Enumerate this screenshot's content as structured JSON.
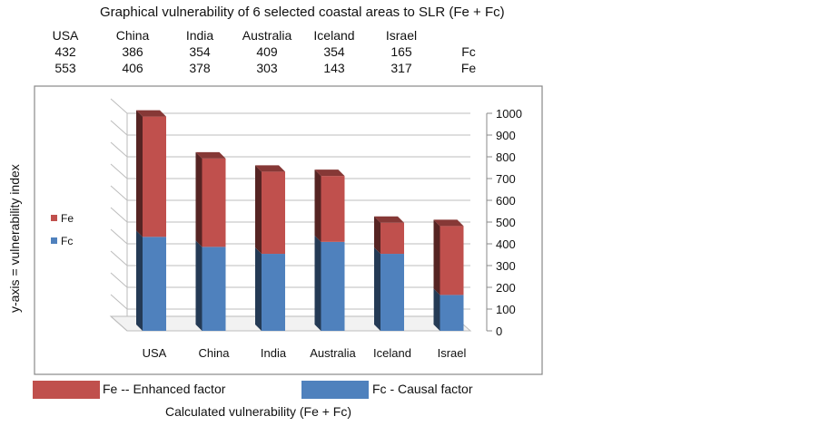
{
  "title": "Graphical vulnerability of 6 selected coastal  areas to SLR  (Fe + Fc)",
  "table": {
    "headers": [
      "USA",
      "China",
      "India",
      "Australia",
      "Iceland",
      "Israel"
    ],
    "rows": [
      {
        "values": [
          "432",
          "386",
          "354",
          "409",
          "354",
          "165"
        ],
        "label": "Fc"
      },
      {
        "values": [
          "553",
          "406",
          "378",
          "303",
          "143",
          "317"
        ],
        "label": "Fe"
      }
    ]
  },
  "chart_data": {
    "type": "bar",
    "stacked": true,
    "three_d": true,
    "categories": [
      "USA",
      "China",
      "India",
      "Australia",
      "Iceland",
      "Israel"
    ],
    "series": [
      {
        "name": "Fc",
        "values": [
          432,
          386,
          354,
          409,
          354,
          165
        ],
        "color": "#4f81bd"
      },
      {
        "name": "Fe",
        "values": [
          553,
          406,
          378,
          303,
          143,
          317
        ],
        "color": "#c0504d"
      }
    ],
    "ylim": [
      0,
      1000
    ],
    "yticks": [
      "0",
      "100",
      "200",
      "300",
      "400",
      "500",
      "600",
      "700",
      "800",
      "900",
      "1000"
    ],
    "ylabel": "y-axis = vulnerability index",
    "legend_inside": [
      "Fe",
      "Fc"
    ],
    "grid": true
  },
  "legend_bottom": {
    "fe_label": "Fe -- Enhanced factor",
    "fc_label": "Fc - Causal  factor",
    "fe_color": "#c0504d",
    "fc_color": "#4f81bd"
  },
  "caption": "Calculated vulnerability (Fe  +  Fc)"
}
